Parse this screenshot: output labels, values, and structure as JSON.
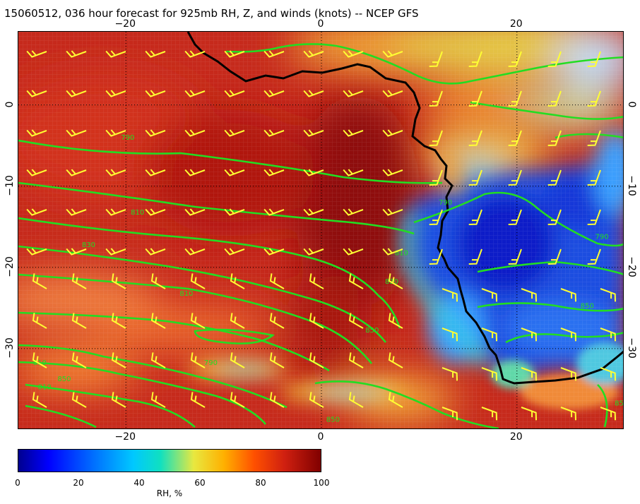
{
  "title": "15060512, 036 hour forecast for 925mb RH, Z, and winds (knots) -- NCEP GFS",
  "map": {
    "lon_range": [
      -31,
      31
    ],
    "lat_range": [
      -40,
      9
    ],
    "gridlines": "dotted",
    "lon_ticks": [
      {
        "value": -20,
        "label": "−20"
      },
      {
        "value": 0,
        "label": "0"
      },
      {
        "value": 20,
        "label": "20"
      }
    ],
    "lat_ticks": [
      {
        "value": 0,
        "label": "0"
      },
      {
        "value": -10,
        "label": "−10"
      },
      {
        "value": -20,
        "label": "−20"
      },
      {
        "value": -30,
        "label": "−30"
      }
    ],
    "contour_color": "#22dd22",
    "barb_color": "#ffff33",
    "coast_color": "#000000",
    "contour_labels": [
      {
        "lon": -20.5,
        "lat": -4.3,
        "text": "790"
      },
      {
        "lon": -19.5,
        "lat": -13.5,
        "text": "810"
      },
      {
        "lon": -24.5,
        "lat": -17.5,
        "text": "830"
      },
      {
        "lon": -14.5,
        "lat": -23.5,
        "text": "810"
      },
      {
        "lon": 4.5,
        "lat": -28.0,
        "text": "850"
      },
      {
        "lon": 6.5,
        "lat": -22.0,
        "text": "830"
      },
      {
        "lon": 7.5,
        "lat": -18.5,
        "text": "810"
      },
      {
        "lon": 12.0,
        "lat": -12.3,
        "text": "790"
      },
      {
        "lon": 28.0,
        "lat": -16.5,
        "text": "790"
      },
      {
        "lon": 26.5,
        "lat": -25.0,
        "text": "850"
      },
      {
        "lon": -12.0,
        "lat": -32.0,
        "text": "790"
      },
      {
        "lon": -29.5,
        "lat": -32.0,
        "text": "810"
      },
      {
        "lon": -29.0,
        "lat": -35.0,
        "text": "810"
      },
      {
        "lon": -27.0,
        "lat": -34.0,
        "text": "850"
      },
      {
        "lon": 0.5,
        "lat": -39.0,
        "text": "850"
      },
      {
        "lon": 30.0,
        "lat": -37.0,
        "text": "850"
      }
    ]
  },
  "colorbar": {
    "label": "RH, %",
    "ticks": [
      "0",
      "20",
      "40",
      "60",
      "80",
      "100"
    ],
    "colors": [
      "#00008f",
      "#0000ff",
      "#0070ff",
      "#00c8ff",
      "#10e0c0",
      "#e8e840",
      "#ffb000",
      "#ff5000",
      "#d02010",
      "#800000"
    ]
  }
}
